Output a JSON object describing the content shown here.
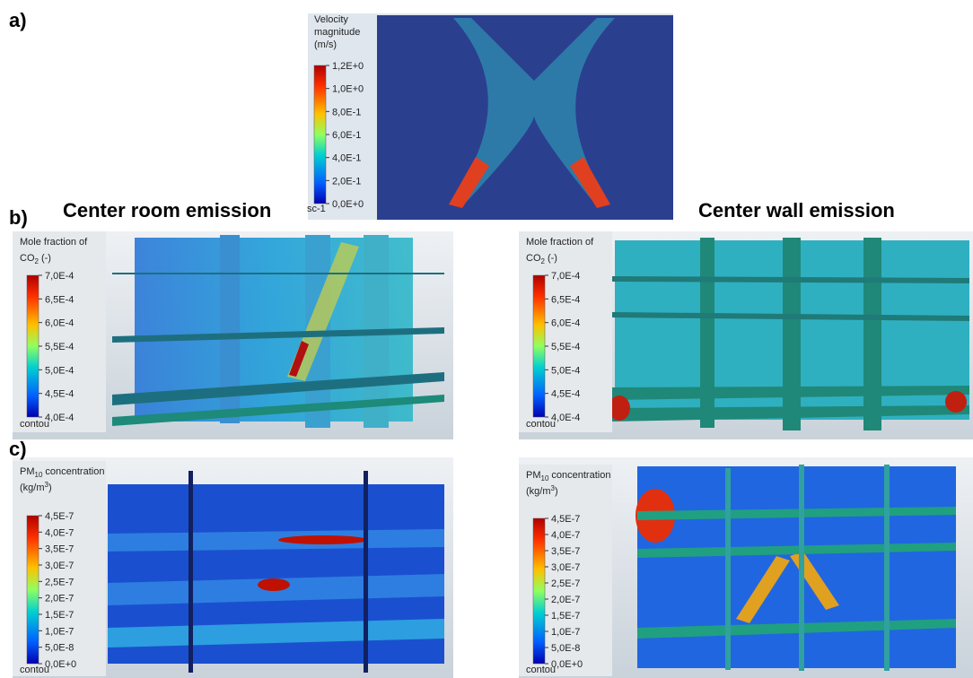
{
  "panel_a": {
    "label": "a)",
    "legend": {
      "title": [
        "Velocity",
        "magnitude",
        "(m/s)"
      ],
      "ticks": [
        "1,2E+0",
        "1,0E+0",
        "8,0E-1",
        "6,0E-1",
        "4,0E-1",
        "2,0E-1",
        "0,0E+0"
      ],
      "footer": "sc-1"
    }
  },
  "panel_b": {
    "label": "b)",
    "left": {
      "title": "Center room emission",
      "legend": {
        "title": {
          "text": "Mole fraction of",
          "chem": "CO",
          "sub": "2",
          "unit": "(-)"
        },
        "ticks": [
          "7,0E-4",
          "6,5E-4",
          "6,0E-4",
          "5,5E-4",
          "5,0E-4",
          "4,5E-4",
          "4,0E-4"
        ],
        "footer": "contou"
      }
    },
    "right": {
      "title": "Center wall emission",
      "legend": {
        "title": {
          "text": "Mole fraction of",
          "chem": "CO",
          "sub": "2",
          "unit": "(-)"
        },
        "ticks": [
          "7,0E-4",
          "6,5E-4",
          "6,0E-4",
          "5,5E-4",
          "5,0E-4",
          "4,5E-4",
          "4,0E-4"
        ],
        "footer": "contou"
      }
    }
  },
  "panel_c": {
    "label": "c)",
    "left": {
      "legend": {
        "title": {
          "chem": "PM",
          "sub": "10",
          "text": "concentration",
          "unit": "(kg/m",
          "sup": "3",
          "close": ")"
        },
        "ticks": [
          "4,5E-7",
          "4,0E-7",
          "3,5E-7",
          "3,0E-7",
          "2,5E-7",
          "2,0E-7",
          "1,5E-7",
          "1,0E-7",
          "5,0E-8",
          "0,0E+0"
        ],
        "footer": "contou"
      }
    },
    "right": {
      "legend": {
        "title": {
          "chem": "PM",
          "sub": "10",
          "text": "concentration",
          "unit": "(kg/m",
          "sup": "3",
          "close": ")"
        },
        "ticks": [
          "4,5E-7",
          "4,0E-7",
          "3,5E-7",
          "3,0E-7",
          "2,5E-7",
          "2,0E-7",
          "1,5E-7",
          "1,0E-7",
          "5,0E-8",
          "0,0E+0"
        ],
        "footer": "contou"
      }
    }
  }
}
